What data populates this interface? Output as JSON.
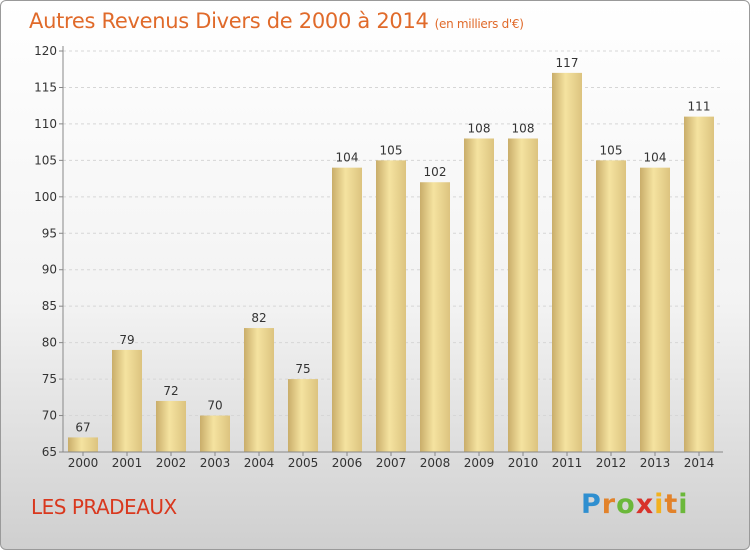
{
  "header": {
    "title": "Autres Revenus Divers de 2000 à 2014",
    "unit": "(en milliers d'€)"
  },
  "footer": {
    "commune": "LES PRADEAUX",
    "logo_text": "Proxiti"
  },
  "colors": {
    "title": "#e06a2a",
    "commune": "#d9381e",
    "bar_light": "#f5e3a0",
    "bar_dark": "#c9ad6a"
  },
  "chart_data": {
    "type": "bar",
    "title": "Autres Revenus Divers de 2000 à 2014",
    "subtitle": "(en milliers d'€)",
    "xlabel": "",
    "ylabel": "",
    "categories": [
      "2000",
      "2001",
      "2002",
      "2003",
      "2004",
      "2005",
      "2006",
      "2007",
      "2008",
      "2009",
      "2010",
      "2011",
      "2012",
      "2013",
      "2014"
    ],
    "values": [
      67,
      79,
      72,
      70,
      82,
      75,
      104,
      105,
      102,
      108,
      108,
      117,
      105,
      104,
      111
    ],
    "ylim": [
      65,
      120
    ],
    "yticks": [
      65,
      70,
      75,
      80,
      85,
      90,
      95,
      100,
      105,
      110,
      115,
      120
    ],
    "grid": true,
    "legend": "none"
  }
}
